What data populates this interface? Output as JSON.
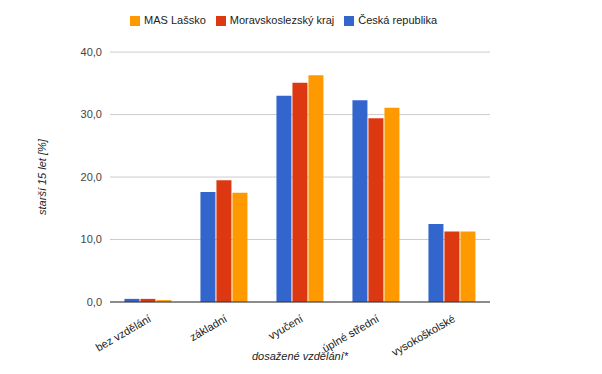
{
  "chart_data": {
    "type": "bar",
    "x_label": "dosažené vzdělání*",
    "y_label": "starší 15 let [%]",
    "categories": [
      "bez vzdělání",
      "základní",
      "vyučení",
      "úplné střední",
      "vysokoškolské"
    ],
    "series": [
      {
        "name": "Česká republika",
        "color": "#3366cc",
        "values": [
          0.5,
          17.6,
          33.0,
          32.3,
          12.5
        ]
      },
      {
        "name": "Moravskoslezský kraj",
        "color": "#dc3912",
        "values": [
          0.5,
          19.5,
          35.1,
          29.4,
          11.3
        ]
      },
      {
        "name": "MAS Lašsko",
        "color": "#ff9900",
        "values": [
          0.3,
          17.5,
          36.3,
          31.1,
          11.3
        ]
      }
    ],
    "ylim": [
      0,
      40
    ],
    "yticks": [
      {
        "value": 0,
        "label": "0,0"
      },
      {
        "value": 10,
        "label": "10,0"
      },
      {
        "value": 20,
        "label": "20,0"
      },
      {
        "value": 30,
        "label": "30,0"
      },
      {
        "value": 40,
        "label": "40,0"
      }
    ],
    "grid": true,
    "legend": "top"
  }
}
